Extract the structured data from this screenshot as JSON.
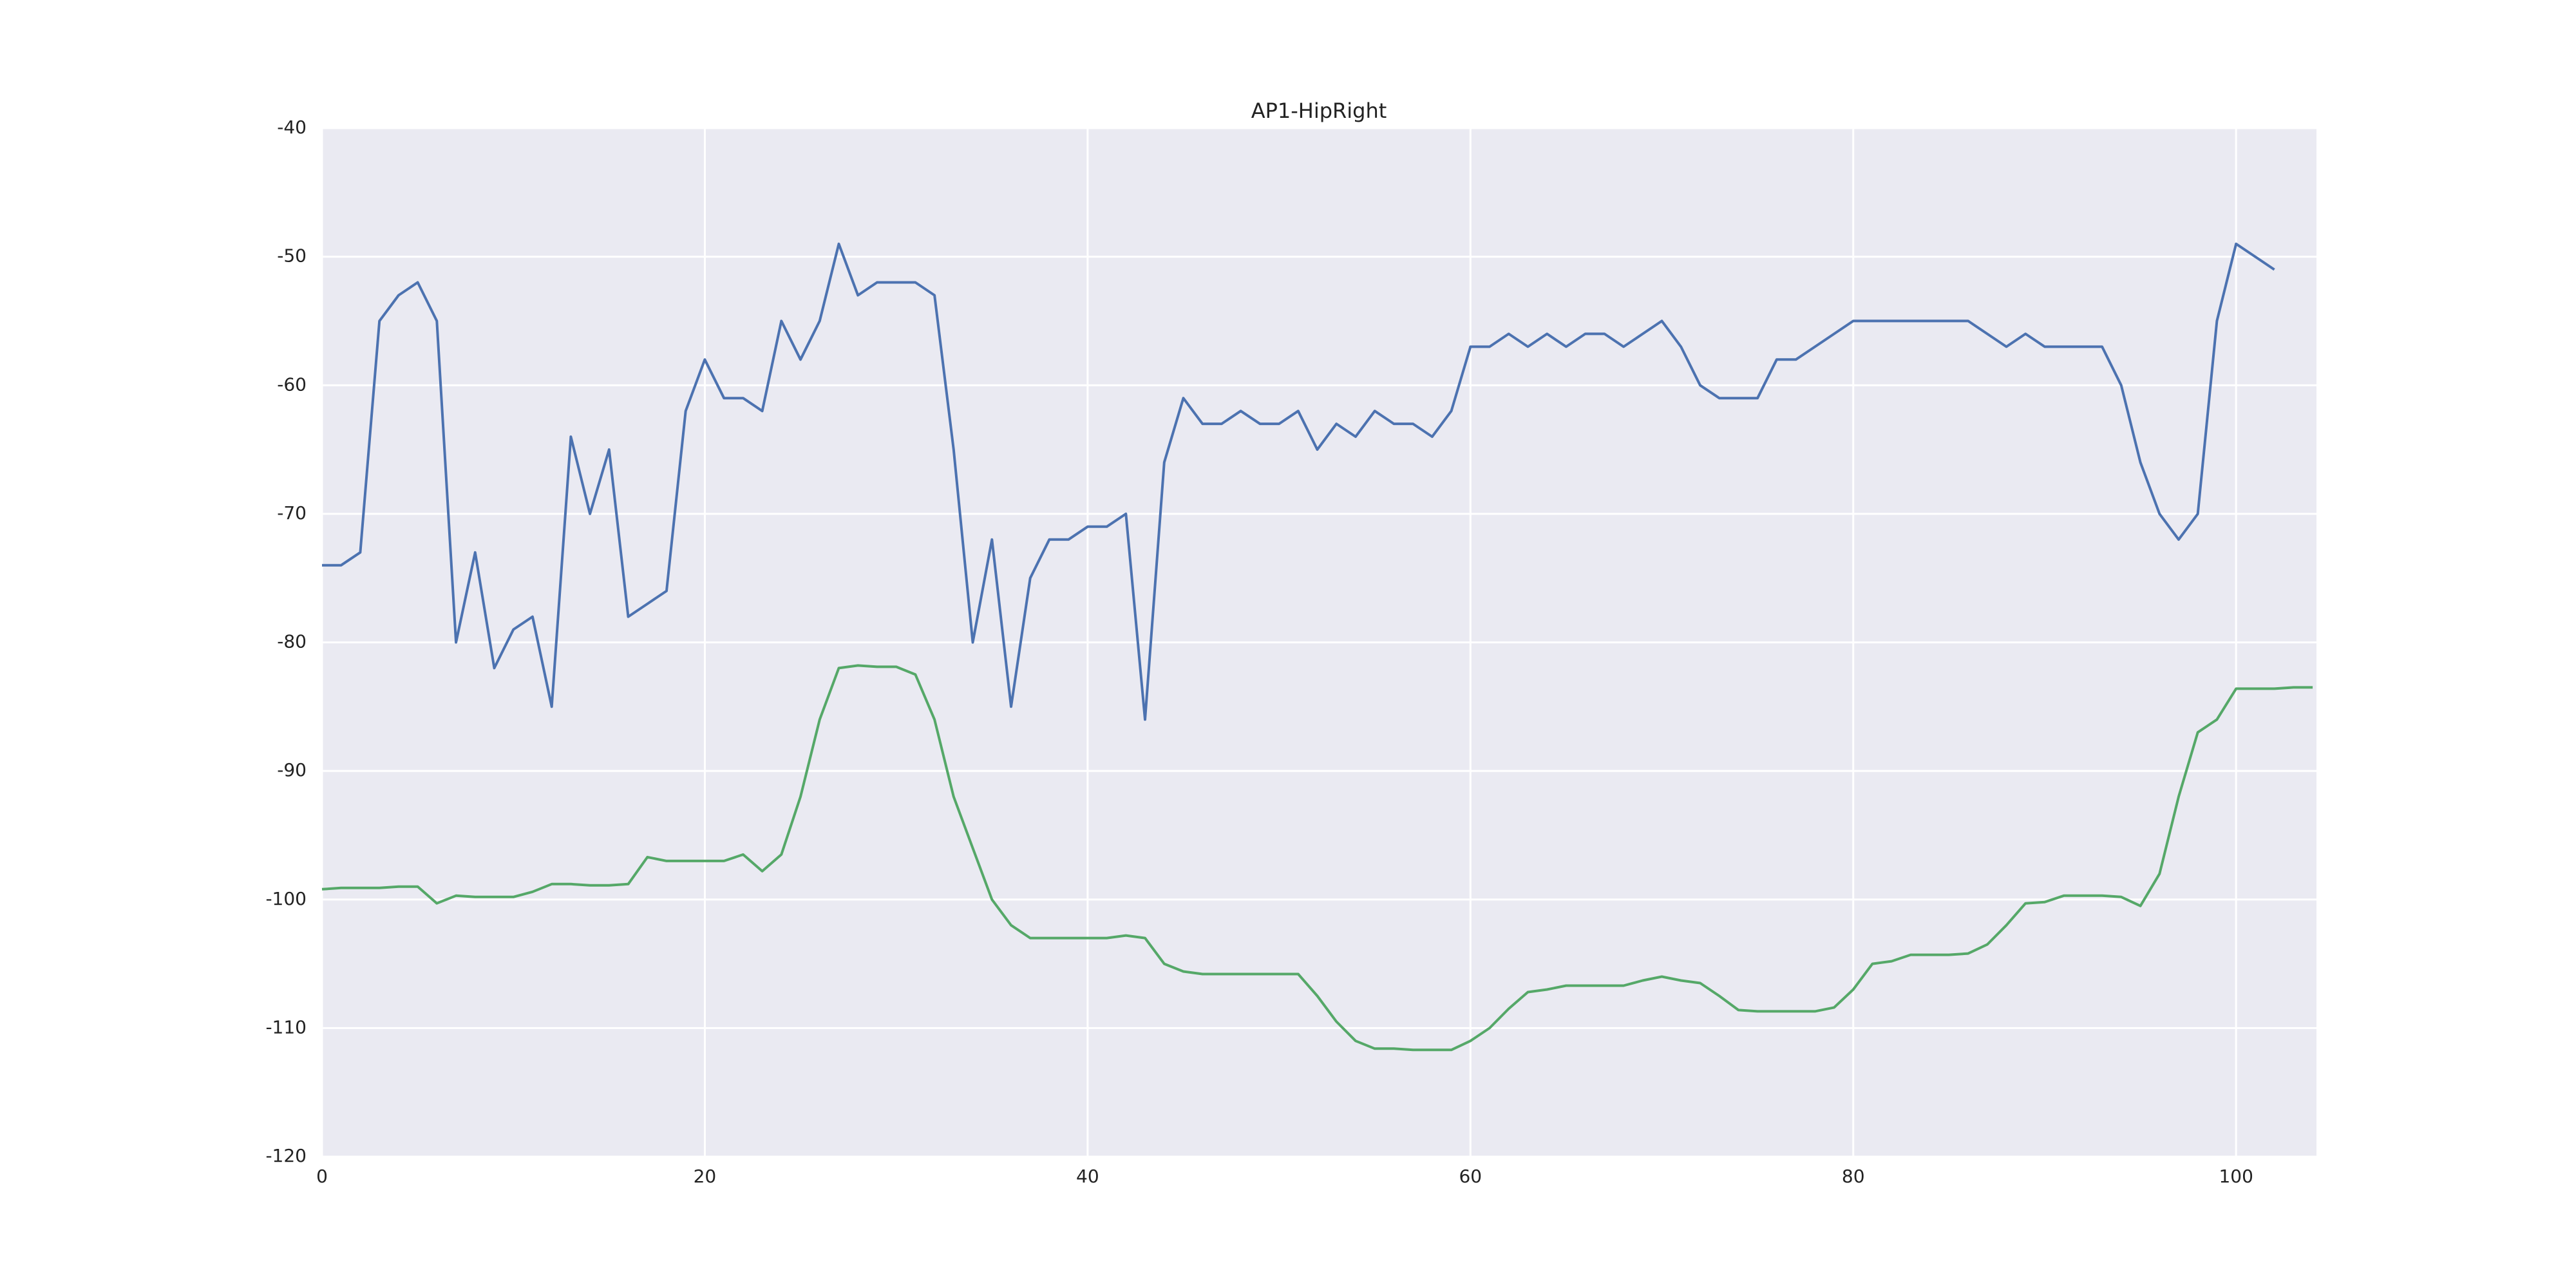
{
  "chart_data": {
    "type": "line",
    "title": "AP1-HipRight",
    "x": [
      0,
      1,
      2,
      3,
      4,
      5,
      6,
      7,
      8,
      9,
      10,
      11,
      12,
      13,
      14,
      15,
      16,
      17,
      18,
      19,
      20,
      21,
      22,
      23,
      24,
      25,
      26,
      27,
      28,
      29,
      30,
      31,
      32,
      33,
      34,
      35,
      36,
      37,
      38,
      39,
      40,
      41,
      42,
      43,
      44,
      45,
      46,
      47,
      48,
      49,
      50,
      51,
      52,
      53,
      54,
      55,
      56,
      57,
      58,
      59,
      60,
      61,
      62,
      63,
      64,
      65,
      66,
      67,
      68,
      69,
      70,
      71,
      72,
      73,
      74,
      75,
      76,
      77,
      78,
      79,
      80,
      81,
      82,
      83,
      84,
      85,
      86,
      87,
      88,
      89,
      90,
      91,
      92,
      93,
      94,
      95,
      96,
      97,
      98,
      99,
      100,
      101,
      102,
      103,
      104
    ],
    "series": [
      {
        "color": "#4c72b0",
        "values": [
          -74,
          -74,
          -73,
          -55,
          -53,
          -52,
          -55,
          -80,
          -73,
          -82,
          -79,
          -78,
          -85,
          -64,
          -70,
          -65,
          -78,
          -77,
          -76,
          -62,
          -58,
          -61,
          -61,
          -62,
          -55,
          -58,
          -55,
          -49,
          -53,
          -52,
          -52,
          -52,
          -53,
          -65,
          -80,
          -72,
          -85,
          -75,
          -72,
          -72,
          -71,
          -71,
          -70,
          -86,
          -66,
          -61,
          -63,
          -63,
          -62,
          -63,
          -63,
          -62,
          -65,
          -63,
          -64,
          -62,
          -63,
          -63,
          -64,
          -62,
          -57,
          -57,
          -56,
          -57,
          -56,
          -57,
          -56,
          -56,
          -57,
          -56,
          -55,
          -57,
          -60,
          -61,
          -61,
          -61,
          -58,
          -58,
          -57,
          -56,
          -55,
          -55,
          -55,
          -55,
          -55,
          -55,
          -55,
          -56,
          -57,
          -56,
          -57,
          -57,
          -57,
          -57,
          -60,
          -66,
          -70,
          -72,
          -70,
          -55,
          -49,
          -50,
          -51,
          null,
          null
        ]
      },
      {
        "color": "#55a868",
        "values": [
          -99.2,
          -99.1,
          -99.1,
          -99.1,
          -99,
          -99,
          -100.3,
          -99.7,
          -99.8,
          -99.8,
          -99.8,
          -99.4,
          -98.8,
          -98.8,
          -98.9,
          -98.9,
          -98.8,
          -96.7,
          -97,
          -97,
          -97,
          -97,
          -96.5,
          -97.8,
          -96.5,
          -92,
          -86,
          -82,
          -81.8,
          -81.9,
          -81.9,
          -82.5,
          -86,
          -92,
          -96,
          -100,
          -102,
          -103,
          -103,
          -103,
          -103,
          -103,
          -102.8,
          -103,
          -105,
          -105.6,
          -105.8,
          -105.8,
          -105.8,
          -105.8,
          -105.8,
          -105.8,
          -107.5,
          -109.5,
          -111,
          -111.6,
          -111.6,
          -111.7,
          -111.7,
          -111.7,
          -111,
          -110,
          -108.5,
          -107.2,
          -107,
          -106.7,
          -106.7,
          -106.7,
          -106.7,
          -106.3,
          -106,
          -106.3,
          -106.5,
          -107.5,
          -108.6,
          -108.7,
          -108.7,
          -108.7,
          -108.7,
          -108.4,
          -107,
          -105,
          -104.8,
          -104.3,
          -104.3,
          -104.3,
          -104.2,
          -103.5,
          -102,
          -100.3,
          -100.2,
          -99.7,
          -99.7,
          -99.7,
          -99.8,
          -100.5,
          -98,
          -92,
          -87,
          -86,
          -83.6,
          -83.6,
          -83.6,
          -83.5,
          -83.5
        ]
      }
    ],
    "xlim": [
      0,
      104.2
    ],
    "ylim": [
      -120,
      -40
    ],
    "xticks": [
      0,
      20,
      40,
      60,
      80,
      100
    ],
    "yticks": [
      -120,
      -110,
      -100,
      -90,
      -80,
      -70,
      -60,
      -50,
      -40
    ],
    "grid": true
  }
}
